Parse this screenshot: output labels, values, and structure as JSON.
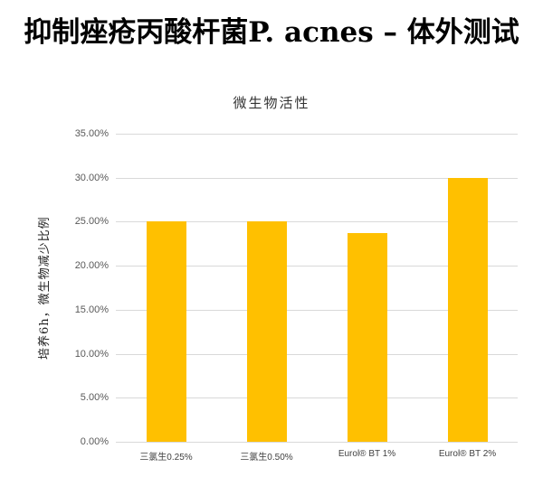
{
  "page": {
    "title": "抑制痤疮丙酸杆菌P. acnes – 体外测试"
  },
  "chart_data": {
    "type": "bar",
    "title": "微生物活性",
    "xlabel": "",
    "ylabel": "培养6h，微生物减少比例",
    "categories": [
      "三氯生0.25%",
      "三氯生0.50%",
      "Eurol® BT 1%",
      "Eurol® BT 2%"
    ],
    "values": [
      25.0,
      25.0,
      23.7,
      30.0
    ],
    "value_format": "percent",
    "ylim": [
      0,
      35
    ],
    "yticks": [
      "0.00%",
      "5.00%",
      "10.00%",
      "15.00%",
      "20.00%",
      "25.00%",
      "30.00%",
      "35.00%"
    ],
    "grid": true,
    "legend": "none",
    "bar_color": "#FFC000"
  }
}
